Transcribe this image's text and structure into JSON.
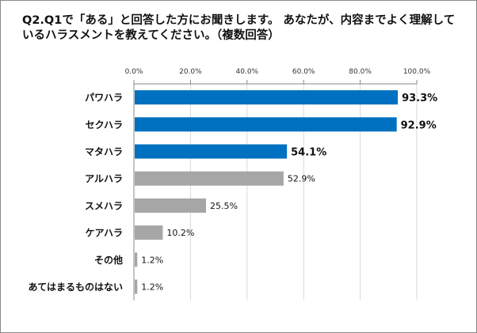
{
  "chart_data": {
    "type": "bar",
    "orientation": "horizontal",
    "title": "Q2.Q1で「ある」と回答した方にお聞きします。 あなたが、内容までよく理解しているハラスメントを教えてください。（複数回答）",
    "categories": [
      "パワハラ",
      "セクハラ",
      "マタハラ",
      "アルハラ",
      "スメハラ",
      "ケアハラ",
      "その他",
      "あてはまるものはない"
    ],
    "values": [
      93.3,
      92.9,
      54.1,
      52.9,
      25.5,
      10.2,
      1.2,
      1.2
    ],
    "value_labels": [
      "93.3%",
      "92.9%",
      "54.1%",
      "52.9%",
      "25.5%",
      "10.2%",
      "1.2%",
      "1.2%"
    ],
    "highlighted": [
      true,
      true,
      true,
      false,
      false,
      false,
      false,
      false
    ],
    "xlim": [
      0,
      100
    ],
    "ticks": [
      "0.0%",
      "20.0%",
      "40.0%",
      "60.0%",
      "80.0%",
      "100.0%"
    ],
    "axis_position": "top",
    "grid": true,
    "colors": {
      "highlight": "#0070C0",
      "other": "#A6A6A6",
      "grid": "#D9D9D9"
    }
  }
}
